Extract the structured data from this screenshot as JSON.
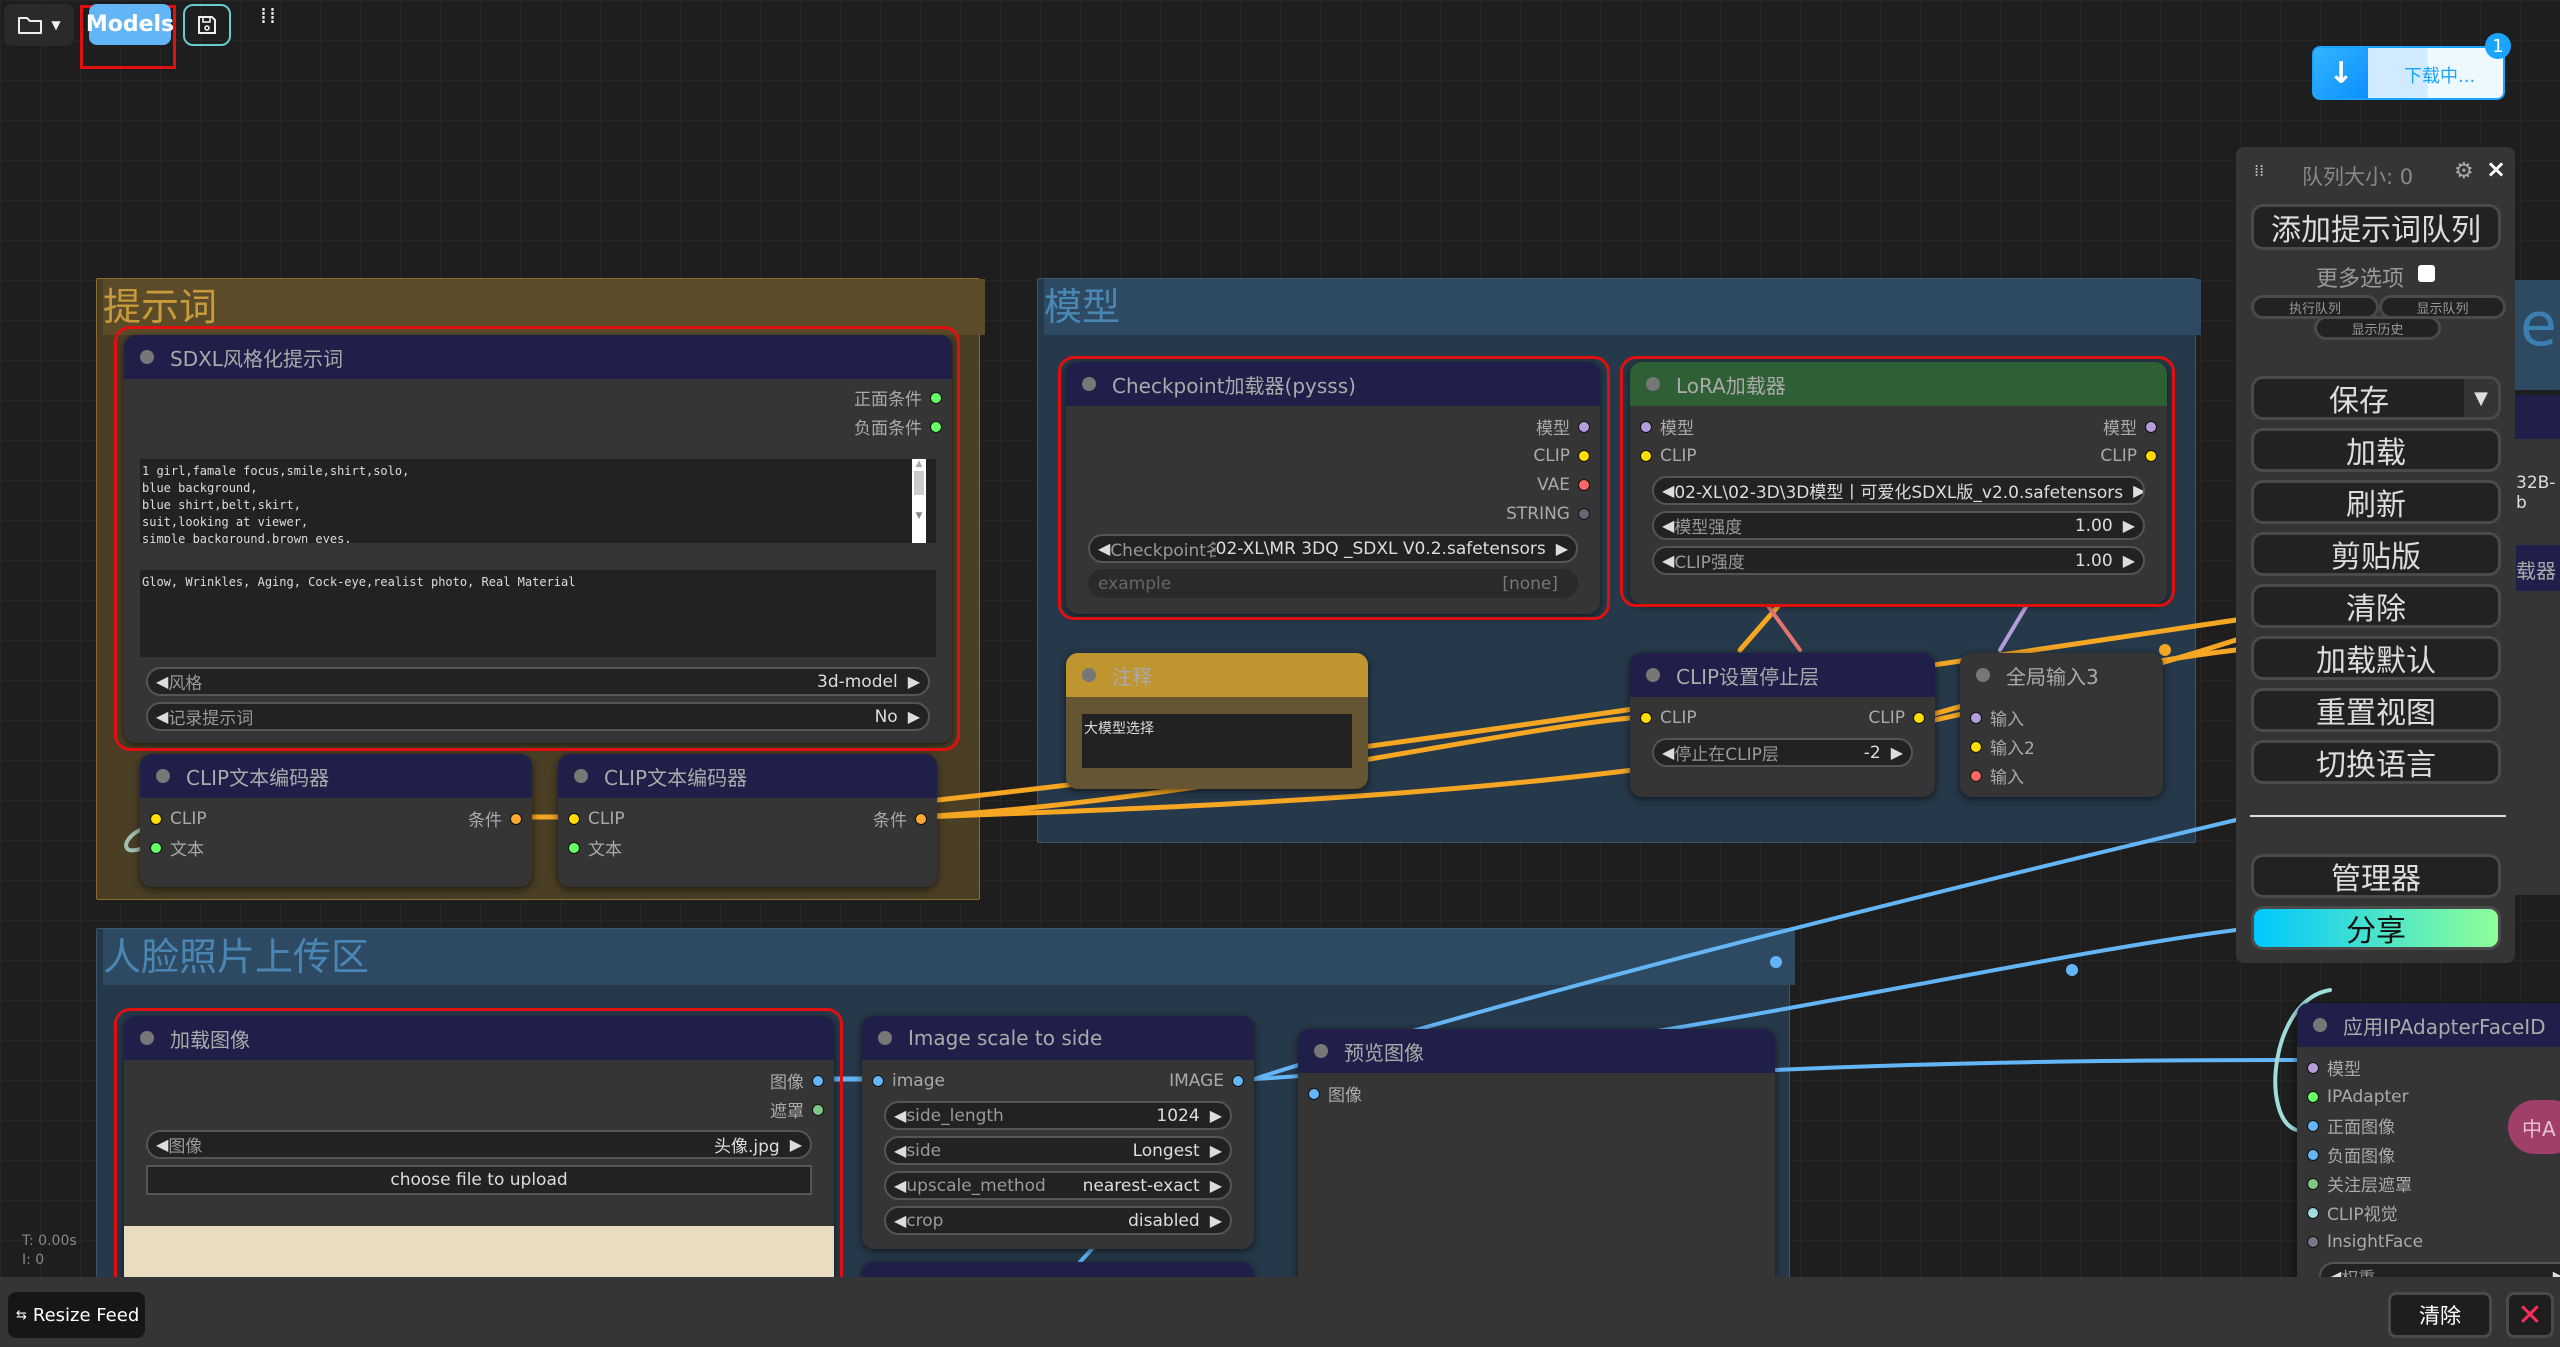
{
  "topbar": {
    "models_label": "Models",
    "folder_icon": "folder-icon",
    "save_icon": "floppy-icon"
  },
  "download": {
    "label": "下载中...",
    "badge": "1"
  },
  "stats": {
    "time": "T: 0.00s",
    "iter": "I: 0"
  },
  "groups": {
    "prompt": "提示词",
    "model": "模型",
    "face": "人脸照片上传区"
  },
  "background_fragments": {
    "letter": "e",
    "text1": "32B-b",
    "text2": "载器"
  },
  "nodes": {
    "sdxl": {
      "title": "SDXL风格化提示词",
      "header": "#1f1f4a",
      "inputs": [],
      "outputs": [
        {
          "label": "正面条件",
          "color": "#6f6"
        },
        {
          "label": "负面条件",
          "color": "#6f6"
        }
      ],
      "textareas": [
        "1 girl,famale focus,smile,shirt,solo,\nblue background,\nblue shirt,belt,skirt,\nsuit,looking at viewer,\nsimple background,brown eyes,",
        "Glow, Wrinkles, Aging, Cock-eye,realist photo, Real Material"
      ],
      "widgets": [
        {
          "label": "风格",
          "value": "3d-model"
        },
        {
          "label": "记录提示词",
          "value": "No"
        }
      ]
    },
    "clip1": {
      "title": "CLIP文本编码器",
      "header": "#1f1f4a",
      "inputs": [
        {
          "label": "CLIP",
          "color": "#fd0"
        },
        {
          "label": "文本",
          "color": "#6f6"
        }
      ],
      "outputs": [
        {
          "label": "条件",
          "color": "#fa3"
        }
      ],
      "widgets": []
    },
    "clip2": {
      "title": "CLIP文本编码器",
      "header": "#1f1f4a",
      "inputs": [
        {
          "label": "CLIP",
          "color": "#fd0"
        },
        {
          "label": "文本",
          "color": "#6f6"
        }
      ],
      "outputs": [
        {
          "label": "条件",
          "color": "#fa3"
        }
      ],
      "widgets": []
    },
    "ckpt": {
      "title": "Checkpoint加载器(pysss)",
      "header": "#1f1f4a",
      "inputs": [],
      "outputs": [
        {
          "label": "模型",
          "color": "#b39ddb"
        },
        {
          "label": "CLIP",
          "color": "#fd0"
        },
        {
          "label": "VAE",
          "color": "#f66"
        },
        {
          "label": "STRING",
          "color": "#667"
        }
      ],
      "widgets": [
        {
          "label": "Checkpoint名称",
          "value": "02-XL\\MR 3DQ _SDXL V0.2.safetensors"
        },
        {
          "label": "example",
          "value": "[none]",
          "dim": true
        }
      ]
    },
    "lora": {
      "title": "LoRA加载器",
      "header": "#2f5f35",
      "inputs": [
        {
          "label": "模型",
          "color": "#b39ddb"
        },
        {
          "label": "CLIP",
          "color": "#fd0"
        }
      ],
      "outputs": [
        {
          "label": "模型",
          "color": "#b39ddb"
        },
        {
          "label": "CLIP",
          "color": "#fd0"
        }
      ],
      "widgets": [
        {
          "label": "",
          "value": "02-XL\\02-3D\\3D模型丨可爱化SDXL版_v2.0.safetensors"
        },
        {
          "label": "模型强度",
          "value": "1.00"
        },
        {
          "label": "CLIP强度",
          "value": "1.00"
        }
      ]
    },
    "note": {
      "title": "注释",
      "text": "大模型选择"
    },
    "clipskip": {
      "title": "CLIP设置停止层",
      "header": "#1f1f4a",
      "inputs": [
        {
          "label": "CLIP",
          "color": "#fd0"
        }
      ],
      "outputs": [
        {
          "label": "CLIP",
          "color": "#fd0"
        }
      ],
      "widgets": [
        {
          "label": "停止在CLIP层",
          "value": "-2"
        }
      ]
    },
    "global": {
      "title": "全局输入3",
      "header": "#353535",
      "inputs": [
        {
          "label": "输入",
          "color": "#b39ddb"
        },
        {
          "label": "输入2",
          "color": "#fd0"
        },
        {
          "label": "输入",
          "color": "#f66"
        }
      ],
      "outputs": [],
      "widgets": []
    },
    "loadimg": {
      "title": "加载图像",
      "header": "#1f1f4a",
      "inputs": [],
      "outputs": [
        {
          "label": "图像",
          "color": "#64b5f6"
        },
        {
          "label": "遮罩",
          "color": "#81c784"
        }
      ],
      "widgets": [
        {
          "label": "图像",
          "value": "头像.jpg"
        }
      ],
      "upload": "choose file to upload"
    },
    "scale": {
      "title": "Image scale to side",
      "header": "#1f1f4a",
      "inputs": [
        {
          "label": "image",
          "color": "#64b5f6"
        }
      ],
      "outputs": [
        {
          "label": "IMAGE",
          "color": "#64b5f6"
        }
      ],
      "widgets": [
        {
          "label": "side_length",
          "value": "1024"
        },
        {
          "label": "side",
          "value": "Longest"
        },
        {
          "label": "upscale_method",
          "value": "nearest-exact"
        },
        {
          "label": "crop",
          "value": "disabled"
        }
      ]
    },
    "preview": {
      "title": "预览图像",
      "header": "#1f1f4a",
      "inputs": [
        {
          "label": "图像",
          "color": "#64b5f6"
        }
      ],
      "outputs": [],
      "widgets": []
    },
    "ipadapter": {
      "title": "应用IPAdapterFaceID",
      "header": "#1f1f4a",
      "inputs": [
        {
          "label": "模型",
          "color": "#b39ddb"
        },
        {
          "label": "IPAdapter",
          "color": "#6f6"
        },
        {
          "label": "正面图像",
          "color": "#64b5f6"
        },
        {
          "label": "负面图像",
          "color": "#64b5f6"
        },
        {
          "label": "关注层遮罩",
          "color": "#81c784"
        },
        {
          "label": "CLIP视觉",
          "color": "#a0dcdc"
        },
        {
          "label": "InsightFace",
          "color": "#778"
        }
      ],
      "outputs": [],
      "widgets": [
        {
          "label": "权重",
          "value": ""
        }
      ]
    },
    "hidden": {
      "title": "",
      "header": "#1f1f4a",
      "inputs": [],
      "outputs": [],
      "widgets": []
    }
  },
  "panel": {
    "queue_size": "队列大小: 0",
    "add_queue": "添加提示词队列",
    "more_options": "更多选项",
    "run_queue": "执行队列",
    "show_queue": "显示队列",
    "show_history": "显示历史",
    "buttons": [
      "保存",
      "加载",
      "刷新",
      "剪贴版",
      "清除",
      "加载默认",
      "重置视图",
      "切换语言"
    ],
    "manager": "管理器",
    "share": "分享"
  },
  "bottom": {
    "resize_feed": "Resize Feed",
    "clear": "清除"
  },
  "colors": {
    "accent": "#64b5f6",
    "highlight": "#e01010",
    "share_gradient_start": "#00c8ff",
    "share_gradient_end": "#90ff98"
  }
}
